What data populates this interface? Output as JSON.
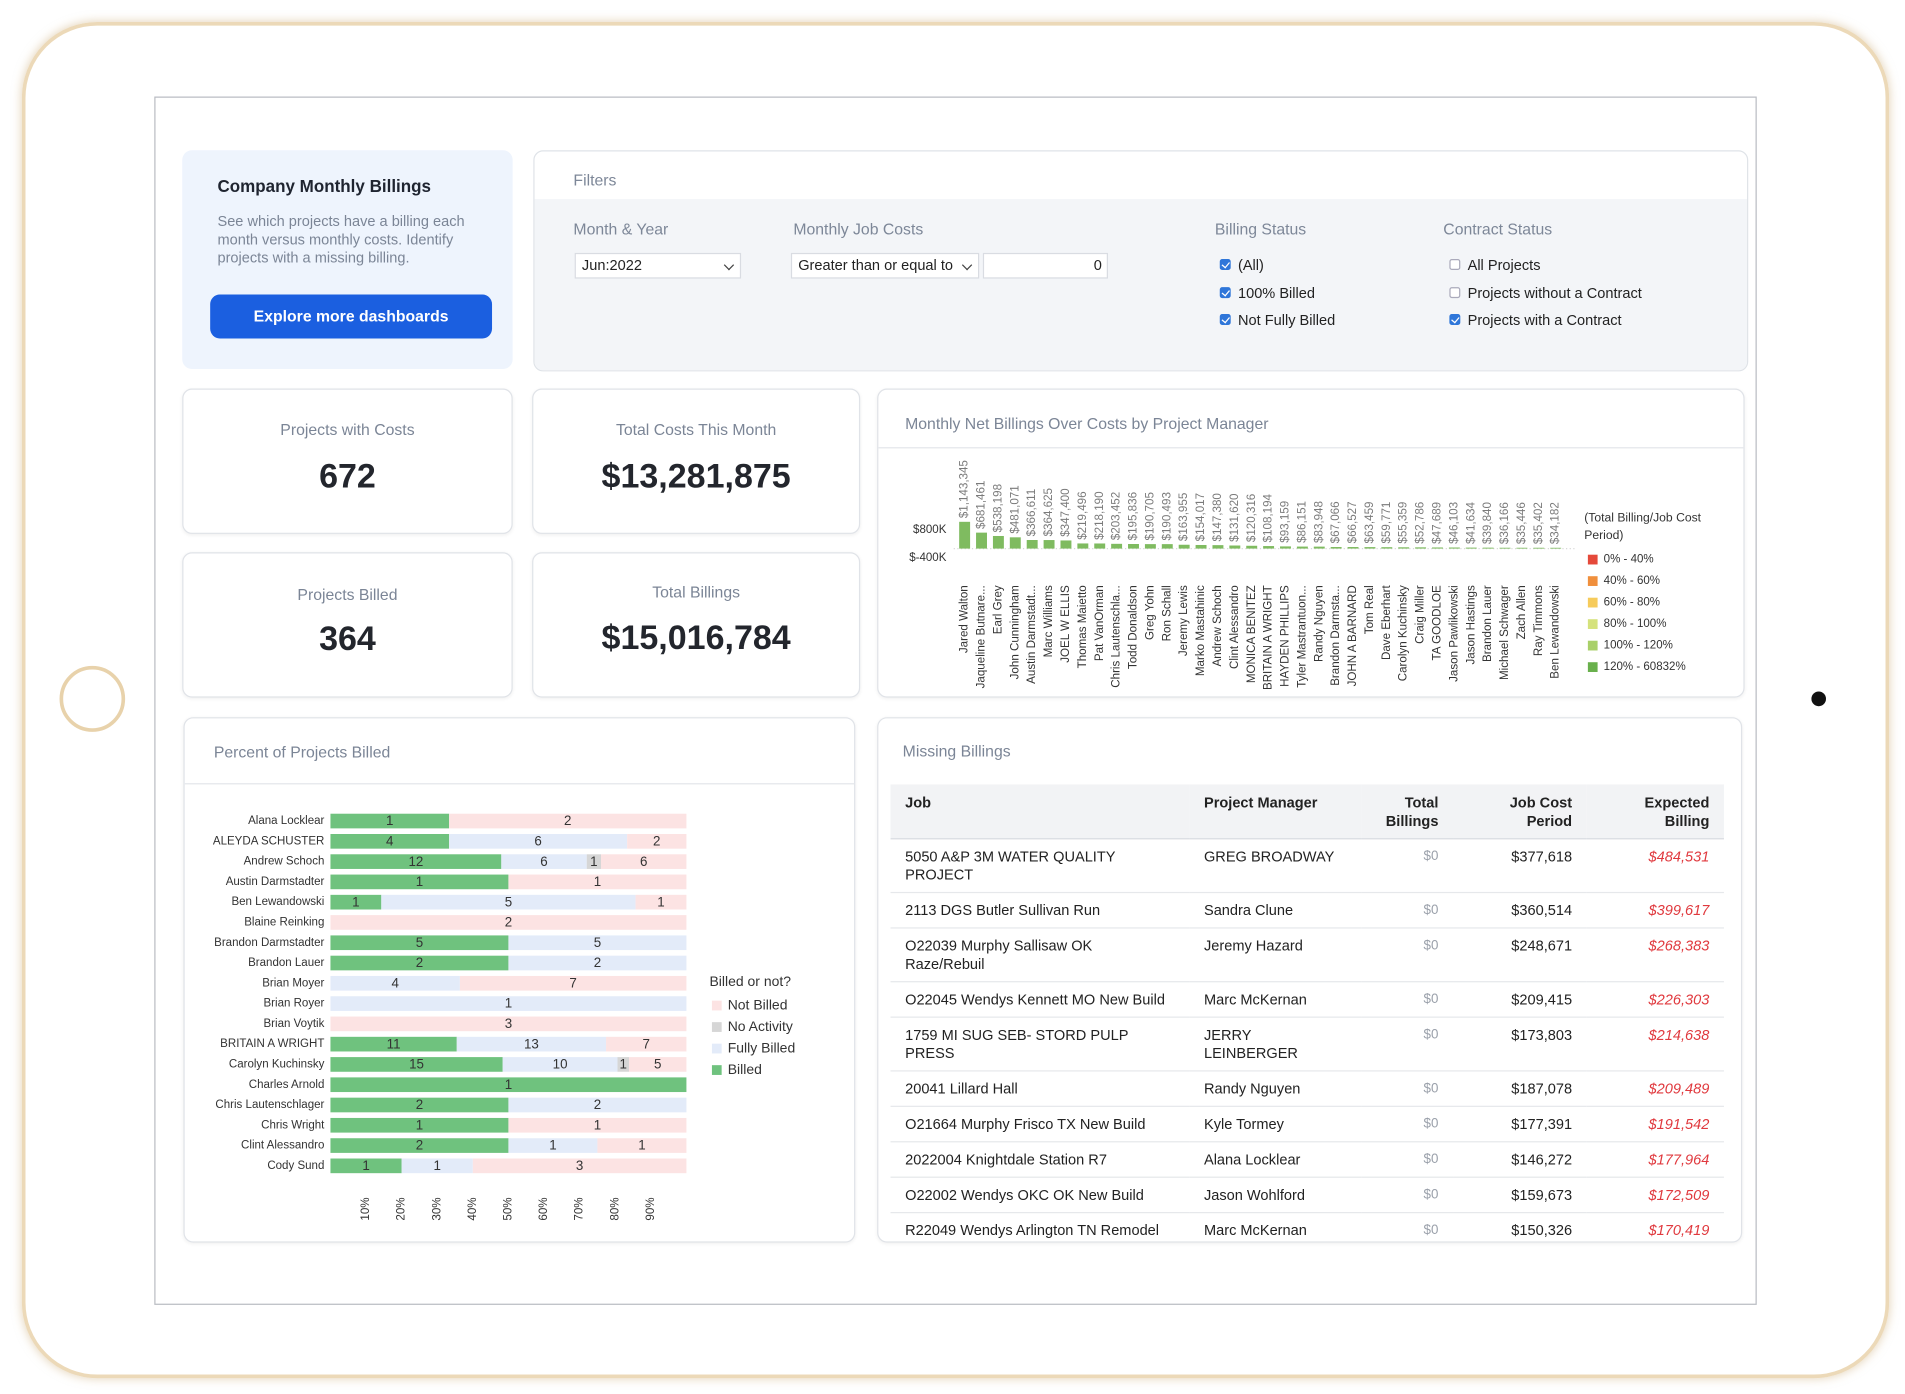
{
  "sidebar": {
    "title": "Company Monthly Billings",
    "description": "See which projects have a billing each month versus monthly costs. Identify projects with a missing billing.",
    "button": "Explore more dashboards"
  },
  "filters": {
    "title": "Filters",
    "month_year": {
      "label": "Month & Year",
      "value": "Jun:2022"
    },
    "job_costs": {
      "label": "Monthly Job Costs",
      "operator": "Greater than or equal to",
      "value": "0"
    },
    "billing_status": {
      "label": "Billing Status",
      "options": [
        {
          "label": "(All)",
          "checked": true
        },
        {
          "label": "100% Billed",
          "checked": true
        },
        {
          "label": "Not Fully Billed",
          "checked": true
        }
      ]
    },
    "contract_status": {
      "label": "Contract Status",
      "options": [
        {
          "label": "All Projects",
          "checked": false
        },
        {
          "label": "Projects without a Contract",
          "checked": false
        },
        {
          "label": "Projects with a Contract",
          "checked": true
        }
      ]
    }
  },
  "kpis": [
    {
      "label": "Projects with Costs",
      "value": "672"
    },
    {
      "label": "Total Costs This Month",
      "value": "$13,281,875"
    },
    {
      "label": "Projects Billed",
      "value": "364"
    },
    {
      "label": "Total Billings",
      "value": "$15,016,784"
    }
  ],
  "chart_data": [
    {
      "type": "bar",
      "title": "Monthly Net Billings Over Costs by Project Manager",
      "categories": [
        "Jared Walton",
        "Jaqueline Butnare...",
        "Earl Grey",
        "John Cunningham",
        "Austin Darmstadt...",
        "Marc Williams",
        "JOEL W ELLIS",
        "Thomas Maietto",
        "Pat VanOrman",
        "Chris Lautenschla...",
        "Todd Donaldson",
        "Greg Yohn",
        "Ron Schall",
        "Jeremy Lewis",
        "Marko Mastahinic",
        "Andrew Schoch",
        "Clint Alessandro",
        "MONICA BENITEZ",
        "BRITAIN A WRIGHT",
        "HAYDEN PHILLIPS",
        "Tyler Mastrantuon...",
        "Randy Nguyen",
        "Brandon Darmsta...",
        "JOHN A BARNARD",
        "Tom Real",
        "Dave Eberhart",
        "Carolyn Kuchinsky",
        "Craig Miller",
        "TA GOODLOE",
        "Jason Pawlikowski",
        "Jason Hastings",
        "Brandon Lauer",
        "Michael Schwager",
        "Zach Allen",
        "Ray Timmons",
        "Ben Lewandowski"
      ],
      "values": [
        1143345,
        681461,
        538198,
        481071,
        366611,
        364625,
        347400,
        219496,
        218190,
        203452,
        195836,
        190705,
        190493,
        163955,
        154017,
        147380,
        131620,
        120316,
        108194,
        93159,
        86151,
        83948,
        67066,
        66527,
        63459,
        59771,
        55359,
        52786,
        47689,
        46103,
        41634,
        39840,
        36166,
        35446,
        35402,
        34182
      ],
      "value_labels": [
        "$1,143,345",
        "$681,461",
        "$538,198",
        "$481,071",
        "$366,611",
        "$364,625",
        "$347,400",
        "$219,496",
        "$218,190",
        "$203,452",
        "$195,836",
        "$190,705",
        "$190,493",
        "$163,955",
        "$154,017",
        "$147,380",
        "$131,620",
        "$120,316",
        "$108,194",
        "$93,159",
        "$86,151",
        "$83,948",
        "$67,066",
        "$66,527",
        "$63,459",
        "$59,771",
        "$55,359",
        "$52,786",
        "$47,689",
        "$46,103",
        "$41,634",
        "$39,840",
        "$36,166",
        "$35,446",
        "$35,402",
        "$34,182"
      ],
      "color": "#7fbb60",
      "ylim": [
        -600000,
        1200000
      ],
      "yticks": [
        {
          "value": 800000,
          "label": "$800K"
        },
        {
          "value": -400000,
          "label": "$-400K"
        }
      ],
      "legend": {
        "title": "(Total Billing/Job Cost Period)",
        "items": [
          {
            "label": "0% - 40%",
            "color": "#e5493a"
          },
          {
            "label": "40% - 60%",
            "color": "#f08f3c"
          },
          {
            "label": "60% - 80%",
            "color": "#f6cb5b"
          },
          {
            "label": "80% - 100%",
            "color": "#d5e27c"
          },
          {
            "label": "100% - 120%",
            "color": "#a9d069"
          },
          {
            "label": "120% - 60832%",
            "color": "#69b04c"
          }
        ]
      }
    },
    {
      "type": "stacked_hbar",
      "title": "Percent of Projects Billed",
      "categories": [
        "Alana Locklear",
        "ALEYDA SCHUSTER",
        "Andrew Schoch",
        "Austin Darmstadter",
        "Ben Lewandowski",
        "Blaine Reinking",
        "Brandon Darmstadter",
        "Brandon Lauer",
        "Brian Moyer",
        "Brian Royer",
        "Brian Voytik",
        "BRITAIN A WRIGHT",
        "Carolyn Kuchinsky",
        "Charles Arnold",
        "Chris Lautenschlager",
        "Chris Wright",
        "Clint Alessandro",
        "Cody Sund"
      ],
      "series": [
        {
          "name": "Billed",
          "color": "#6fc27e",
          "values": [
            1,
            4,
            12,
            1,
            1,
            0,
            5,
            2,
            0,
            0,
            0,
            11,
            15,
            1,
            2,
            1,
            2,
            1
          ]
        },
        {
          "name": "Fully Billed",
          "color": "#e3ebf9",
          "values": [
            0,
            6,
            6,
            0,
            5,
            0,
            5,
            2,
            4,
            1,
            0,
            13,
            10,
            0,
            2,
            0,
            1,
            1
          ]
        },
        {
          "name": "No Activity",
          "color": "#d6d6d6",
          "values": [
            0,
            0,
            1,
            0,
            0,
            0,
            0,
            0,
            0,
            0,
            0,
            0,
            1,
            0,
            0,
            0,
            0,
            0
          ]
        },
        {
          "name": "Not Billed",
          "color": "#fce3e3",
          "values": [
            2,
            2,
            6,
            1,
            1,
            2,
            0,
            0,
            7,
            0,
            3,
            7,
            5,
            0,
            0,
            1,
            1,
            3
          ]
        }
      ],
      "legend_title": "Billed or not?",
      "xlim": [
        0,
        100
      ],
      "xticks": [
        {
          "value": 10,
          "label": "10%"
        },
        {
          "value": 20,
          "label": "20%"
        },
        {
          "value": 30,
          "label": "30%"
        },
        {
          "value": 40,
          "label": "40%"
        },
        {
          "value": 50,
          "label": "50%"
        },
        {
          "value": 60,
          "label": "60%"
        },
        {
          "value": 70,
          "label": "70%"
        },
        {
          "value": 80,
          "label": "80%"
        },
        {
          "value": 90,
          "label": "90%"
        }
      ]
    }
  ],
  "table": {
    "title": "Missing Billings",
    "columns": [
      "Job",
      "Project Manager",
      "Total Billings",
      "Job Cost Period",
      "Expected Billing"
    ],
    "rows": [
      [
        "5050 A&P 3M WATER QUALITY PROJECT",
        "GREG BROADWAY",
        "$0",
        "$377,618",
        "$484,531"
      ],
      [
        "2113 DGS Butler Sullivan Run",
        "Sandra Clune",
        "$0",
        "$360,514",
        "$399,617"
      ],
      [
        "O22039 Murphy Sallisaw OK Raze/Rebuil",
        "Jeremy Hazard",
        "$0",
        "$248,671",
        "$268,383"
      ],
      [
        "O22045 Wendys Kennett MO New Build",
        "Marc McKernan",
        "$0",
        "$209,415",
        "$226,303"
      ],
      [
        "1759 MI SUG SEB- STORD PULP PRESS",
        "JERRY LEINBERGER",
        "$0",
        "$173,803",
        "$214,638"
      ],
      [
        "20041 Lillard Hall",
        "Randy Nguyen",
        "$0",
        "$187,078",
        "$209,489"
      ],
      [
        "O21664 Murphy Frisco TX New Build",
        "Kyle Tormey",
        "$0",
        "$177,391",
        "$191,542"
      ],
      [
        "2022004 Knightdale Station R7",
        "Alana Locklear",
        "$0",
        "$146,272",
        "$177,964"
      ],
      [
        "O22002 Wendys OKC OK New Build",
        "Jason Wohlford",
        "$0",
        "$159,673",
        "$172,509"
      ],
      [
        "R22049 Wendys Arlington TN Remodel",
        "Marc McKernan",
        "$0",
        "$150,326",
        "$170,419"
      ]
    ]
  }
}
